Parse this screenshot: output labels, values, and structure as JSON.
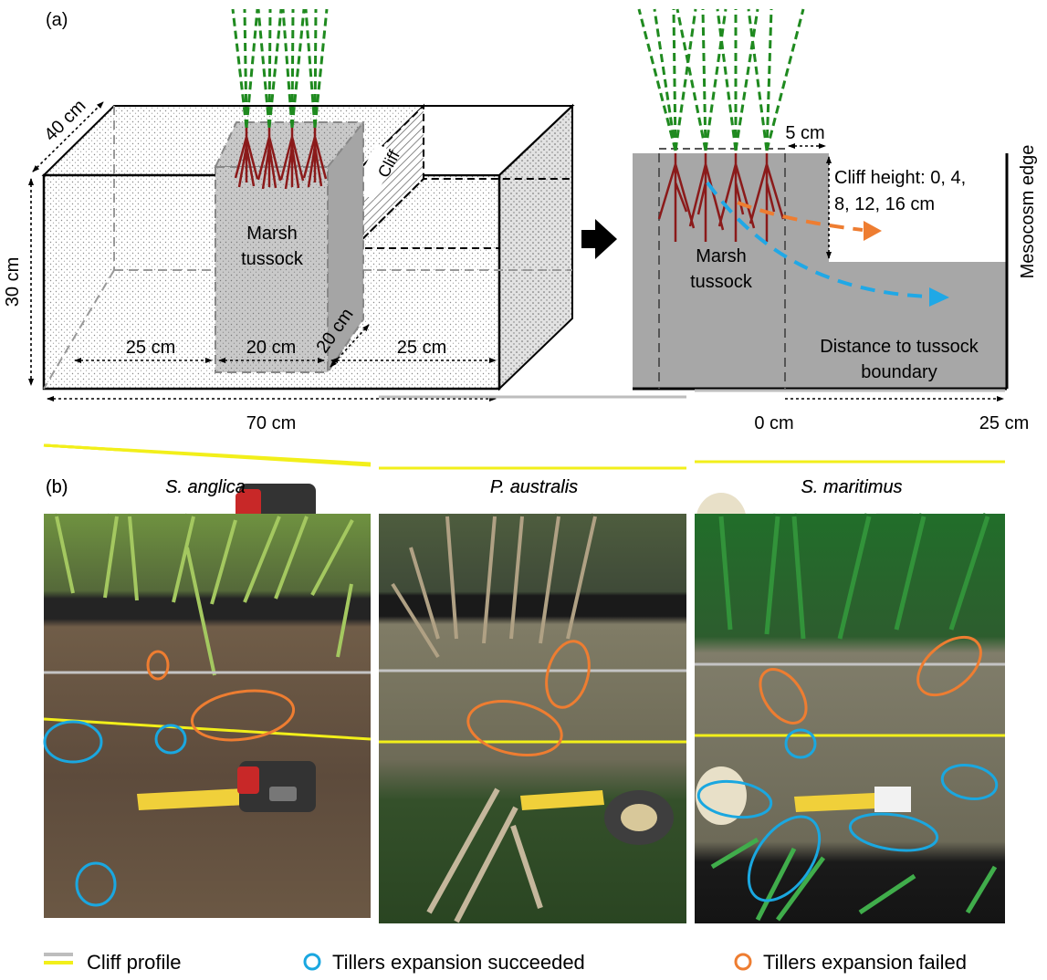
{
  "panel_a": {
    "label": "(a)",
    "depth_label": "40 cm",
    "height_label": "30 cm",
    "width_label": "70 cm",
    "left_span_label": "25 cm",
    "middle_span_label": "20 cm",
    "tussock_depth_label": "20 cm",
    "right_span_label": "25 cm",
    "cliff_label": "Cliff",
    "tussock_label_line1": "Marsh",
    "tussock_label_line2": "tussock",
    "side_gap_label": "5 cm",
    "cliff_height_line1": "Cliff height: 0, 4,",
    "cliff_height_line2": "8, 12, 16 cm",
    "mesocosm_edge_label": "Mesocosm edge",
    "distance_label_line1": "Distance to tussock",
    "distance_label_line2": "boundary",
    "axis_start_label": "0 cm",
    "axis_end_label": "25 cm"
  },
  "panel_b": {
    "label": "(b)",
    "species": [
      "S. anglica",
      "P. australis",
      "S. maritimus"
    ]
  },
  "legend": {
    "cliff_profile": "Cliff profile",
    "succeeded": "Tillers expansion succeeded",
    "failed": "Tillers expansion failed"
  },
  "colors": {
    "box_outline": "#000000",
    "tussock_fill": "#c8c8c8",
    "section_fill": "#a7a7a7",
    "leaf_green": "#1f8a1f",
    "root_red": "#8b1a1a",
    "arrow_orange": "#ee7d31",
    "arrow_blue": "#20a8e6",
    "ellipse_orange": "#ee7d31",
    "ellipse_blue": "#1aa7e0",
    "cliff_gray": "#bdbdbd",
    "cliff_yellow": "#f2ef1a"
  }
}
